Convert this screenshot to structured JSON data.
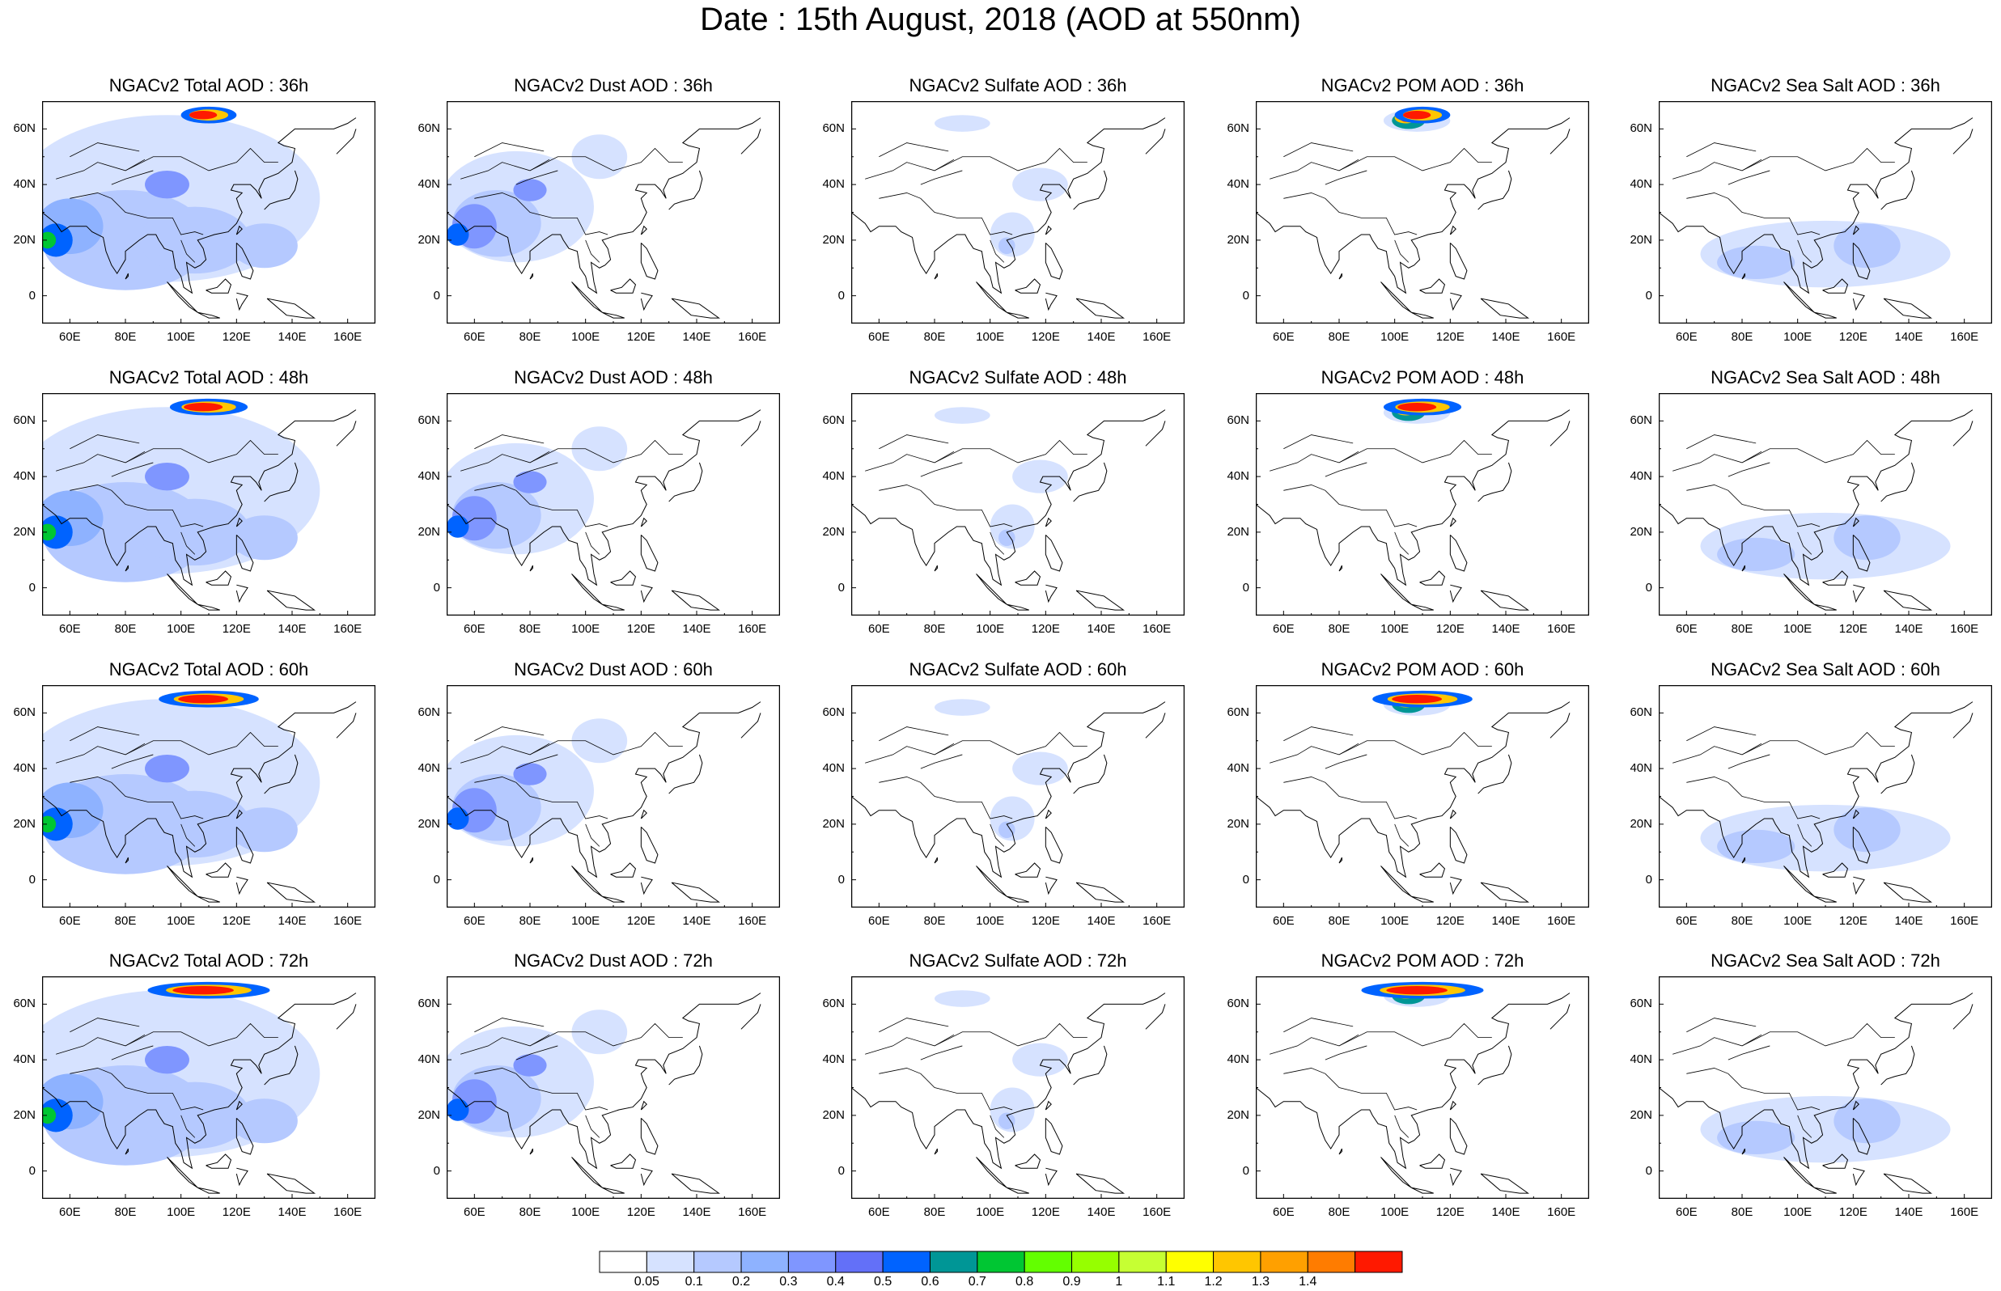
{
  "page_title": "Date : 15th August, 2018 (AOD at 550nm)",
  "grid": {
    "rows": [
      {
        "lead": "36h",
        "panels": [
          {
            "title": "NGACv2 Total AOD : 36h",
            "variable": "total"
          },
          {
            "title": "NGACv2 Dust AOD : 36h",
            "variable": "dust"
          },
          {
            "title": "NGACv2 Sulfate AOD : 36h",
            "variable": "sulfate"
          },
          {
            "title": "NGACv2 POM AOD : 36h",
            "variable": "pom"
          },
          {
            "title": "NGACv2 Sea Salt AOD : 36h",
            "variable": "seasalt"
          }
        ]
      },
      {
        "lead": "48h",
        "panels": [
          {
            "title": "NGACv2 Total AOD : 48h",
            "variable": "total"
          },
          {
            "title": "NGACv2 Dust AOD : 48h",
            "variable": "dust"
          },
          {
            "title": "NGACv2 Sulfate AOD : 48h",
            "variable": "sulfate"
          },
          {
            "title": "NGACv2 POM AOD : 48h",
            "variable": "pom"
          },
          {
            "title": "NGACv2 Sea Salt AOD : 48h",
            "variable": "seasalt"
          }
        ]
      },
      {
        "lead": "60h",
        "panels": [
          {
            "title": "NGACv2 Total AOD : 60h",
            "variable": "total"
          },
          {
            "title": "NGACv2 Dust AOD : 60h",
            "variable": "dust"
          },
          {
            "title": "NGACv2 Sulfate AOD : 60h",
            "variable": "sulfate"
          },
          {
            "title": "NGACv2 POM AOD : 60h",
            "variable": "pom"
          },
          {
            "title": "NGACv2 Sea Salt AOD : 60h",
            "variable": "seasalt"
          }
        ]
      },
      {
        "lead": "72h",
        "panels": [
          {
            "title": "NGACv2 Total AOD : 72h",
            "variable": "total"
          },
          {
            "title": "NGACv2 Dust AOD : 72h",
            "variable": "dust"
          },
          {
            "title": "NGACv2 Sulfate AOD : 72h",
            "variable": "sulfate"
          },
          {
            "title": "NGACv2 POM AOD : 72h",
            "variable": "pom"
          },
          {
            "title": "NGACv2 Sea Salt  AOD : 72h",
            "variable": "seasalt"
          }
        ]
      }
    ]
  },
  "map_extent": {
    "lon_min": 50,
    "lon_max": 170,
    "lat_min": -10,
    "lat_max": 70
  },
  "x_ticks": [
    {
      "lon": 60,
      "label": "60E"
    },
    {
      "lon": 80,
      "label": "80E"
    },
    {
      "lon": 100,
      "label": "100E"
    },
    {
      "lon": 120,
      "label": "120E"
    },
    {
      "lon": 140,
      "label": "140E"
    },
    {
      "lon": 160,
      "label": "160E"
    }
  ],
  "y_ticks": [
    {
      "lat": 60,
      "label": "60N"
    },
    {
      "lat": 40,
      "label": "40N"
    },
    {
      "lat": 20,
      "label": "20N"
    },
    {
      "lat": 0,
      "label": "0"
    }
  ],
  "colorbar": {
    "colors": [
      "#ffffff",
      "#d6e2ff",
      "#b5c9ff",
      "#8eb2ff",
      "#7f96ff",
      "#6370f8",
      "#0063ff",
      "#009696",
      "#00c633",
      "#63ff00",
      "#96ff00",
      "#c6ff33",
      "#ffff00",
      "#ffc600",
      "#ffa000",
      "#ff7c00",
      "#ff1900"
    ],
    "labels": [
      "0.05",
      "0.1",
      "0.2",
      "0.3",
      "0.4",
      "0.5",
      "0.6",
      "0.7",
      "0.8",
      "0.9",
      "1",
      "1.1",
      "1.2",
      "1.3",
      "1.4"
    ]
  },
  "chart_data": {
    "type": "heatmap",
    "title": "Date : 15th August, 2018 (AOD at 550nm)",
    "quantity": "AOD at 550nm",
    "variables": [
      "Total AOD",
      "Dust AOD",
      "Sulfate AOD",
      "POM AOD",
      "Sea Salt AOD"
    ],
    "forecast_leads": [
      "36h",
      "48h",
      "60h",
      "72h"
    ],
    "lon_range": [
      50,
      170
    ],
    "lat_range": [
      -10,
      70
    ],
    "levels": [
      0.05,
      0.1,
      0.2,
      0.3,
      0.4,
      0.5,
      0.6,
      0.7,
      0.8,
      0.9,
      1,
      1.1,
      1.2,
      1.3,
      1.4
    ],
    "features": {
      "total": [
        {
          "lead": "36h",
          "lon": 105,
          "lat": 63,
          "aod": 1.4
        },
        {
          "lead": "36h",
          "lon": 52,
          "lat": 20,
          "aod": 0.8
        },
        {
          "lead": "48h",
          "lon": 110,
          "lat": 65,
          "aod": 1.4
        },
        {
          "lead": "48h",
          "lon": 55,
          "lat": 20,
          "aod": 0.7
        },
        {
          "lead": "60h",
          "lon": 112,
          "lat": 65,
          "aod": 1.4
        },
        {
          "lead": "60h",
          "lon": 58,
          "lat": 20,
          "aod": 0.9
        },
        {
          "lead": "72h",
          "lon": 110,
          "lat": 66,
          "aod": 1.4
        },
        {
          "lead": "72h",
          "lon": 55,
          "lat": 20,
          "aod": 0.8
        }
      ],
      "dust": [
        {
          "lead": "36h",
          "lon": 62,
          "lat": 25,
          "aod": 0.6
        },
        {
          "lead": "48h",
          "lon": 65,
          "lat": 22,
          "aod": 0.6
        },
        {
          "lead": "60h",
          "lon": 65,
          "lat": 24,
          "aod": 0.7
        },
        {
          "lead": "72h",
          "lon": 65,
          "lat": 22,
          "aod": 0.7
        }
      ],
      "sulfate": [
        {
          "lead": "36h",
          "lon": 106,
          "lat": 22,
          "aod": 0.2
        },
        {
          "lead": "48h",
          "lon": 106,
          "lat": 22,
          "aod": 0.2
        },
        {
          "lead": "60h",
          "lon": 106,
          "lat": 18,
          "aod": 0.3
        },
        {
          "lead": "72h",
          "lon": 106,
          "lat": 20,
          "aod": 0.3
        }
      ],
      "pom": [
        {
          "lead": "36h",
          "lon": 105,
          "lat": 63,
          "aod": 1.4
        },
        {
          "lead": "48h",
          "lon": 105,
          "lat": 65,
          "aod": 1.4
        },
        {
          "lead": "60h",
          "lon": 110,
          "lat": 64,
          "aod": 1.4
        },
        {
          "lead": "72h",
          "lon": 115,
          "lat": 65,
          "aod": 1.4
        }
      ],
      "seasalt": [
        {
          "lead": "36h",
          "lon": 120,
          "lat": 18,
          "aod": 0.2
        },
        {
          "lead": "48h",
          "lon": 118,
          "lat": 18,
          "aod": 0.2
        },
        {
          "lead": "60h",
          "lon": 120,
          "lat": 15,
          "aod": 0.2
        },
        {
          "lead": "72h",
          "lon": 130,
          "lat": 18,
          "aod": 0.2
        }
      ]
    }
  }
}
